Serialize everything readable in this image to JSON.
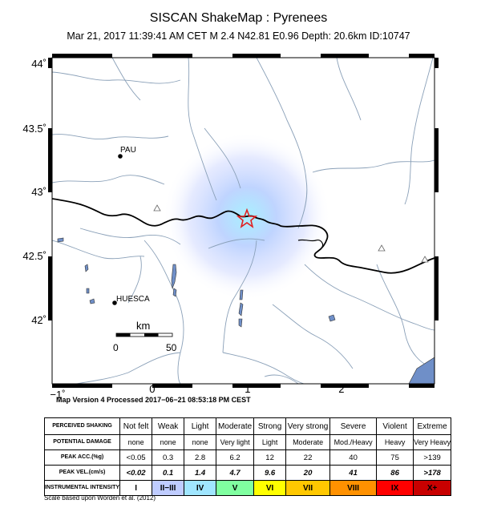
{
  "header": {
    "title": "SISCAN ShakeMap : Pyrenees",
    "subtitle": "Mar 21, 2017 11:39:41 AM CET   M 2.4   N42.81 E0.96   Depth: 20.6km   ID:10747"
  },
  "map": {
    "lat_labels": [
      "44˚",
      "43.5˚",
      "43˚",
      "42.5˚",
      "42˚"
    ],
    "lon_labels": [
      "−1˚",
      "0˚",
      "1˚",
      "2˚"
    ],
    "cities": [
      {
        "name": "PAU"
      },
      {
        "name": "HUESCA"
      }
    ],
    "scale_bar": {
      "unit": "km",
      "start": "0",
      "end": "50"
    },
    "colors": {
      "border": "#000000",
      "rivers": "#8aa0b8",
      "water": "#6f8fc8",
      "intensity_center": "#a8f0ff",
      "epicenter": "#e02020"
    }
  },
  "version": "Map Version 4 Processed 2017−06−21 08:53:18 PM CEST",
  "legend": {
    "row_headers": [
      "PERCEIVED SHAKING",
      "POTENTIAL DAMAGE",
      "PEAK ACC.(%g)",
      "PEAK VEL.(cm/s)",
      "INSTRUMENTAL INTENSITY"
    ],
    "shaking": [
      "Not felt",
      "Weak",
      "Light",
      "Moderate",
      "Strong",
      "Very strong",
      "Severe",
      "Violent",
      "Extreme"
    ],
    "damage": [
      "none",
      "none",
      "none",
      "Very light",
      "Light",
      "Moderate",
      "Mod./Heavy",
      "Heavy",
      "Very Heavy"
    ],
    "acc": [
      "<0.05",
      "0.3",
      "2.8",
      "6.2",
      "12",
      "22",
      "40",
      "75",
      ">139"
    ],
    "vel": [
      "<0.02",
      "0.1",
      "1.4",
      "4.7",
      "9.6",
      "20",
      "41",
      "86",
      ">178"
    ],
    "intensity": [
      "I",
      "II−III",
      "IV",
      "V",
      "VI",
      "VII",
      "VIII",
      "IX",
      "X+"
    ],
    "intensity_colors": [
      "#ffffff",
      "#bfccff",
      "#a0e6ff",
      "#80ffa0",
      "#ffff00",
      "#ffc800",
      "#ff9100",
      "#ff0000",
      "#c80000"
    ]
  },
  "scale_note": "Scale based upon Worden et al. (2012)"
}
